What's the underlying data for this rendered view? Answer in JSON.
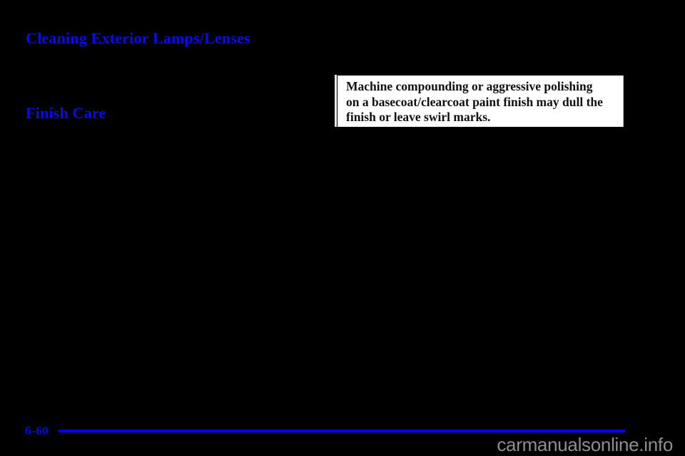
{
  "page": {
    "type": "owner-manual-scanned-page",
    "background": "#000000"
  },
  "headings": {
    "primary": "Cleaning Exterior Lamps/Lenses",
    "secondary": "Finish Care"
  },
  "notice": {
    "lines": [
      "Machine compounding or aggressive polishing",
      "on a basecoat/clearcoat paint finish may dull the",
      "finish or leave swirl marks."
    ],
    "full_text": "Machine compounding or aggressive polishing on a basecoat/clearcoat paint finish may dull the finish or leave swirl marks."
  },
  "footer": {
    "page_number": "6-60"
  },
  "watermark": "carmanualsonline.info",
  "colors": {
    "heading_blue": "#0a0aee",
    "rule_blue": "#0202f2",
    "notice_background": "#ffffff",
    "notice_text": "#101010",
    "notice_bar": "#e9e9e9",
    "watermark_gray": "#8f8f8f",
    "page_background": "#000000"
  }
}
